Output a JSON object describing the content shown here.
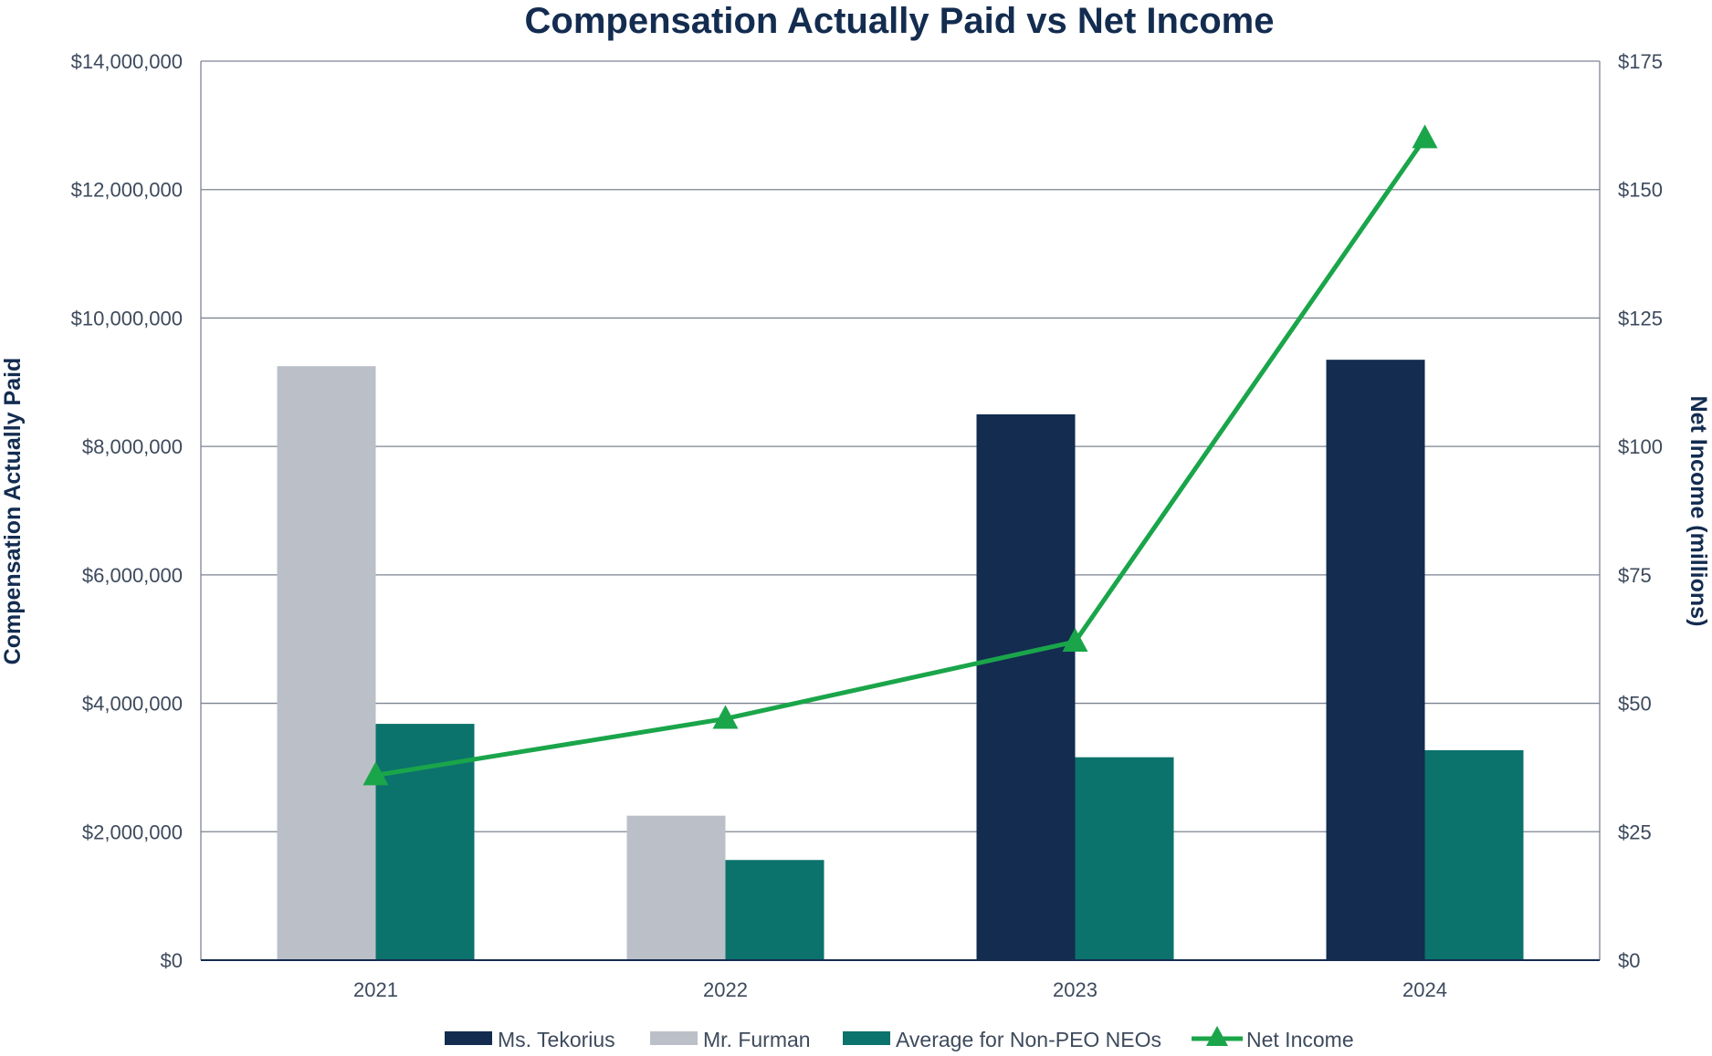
{
  "chart_data": {
    "type": "bar",
    "title": "Compensation Actually Paid vs Net Income",
    "categories": [
      "2021",
      "2022",
      "2023",
      "2024"
    ],
    "y_left": {
      "label": "Compensation Actually Paid",
      "range": [
        0,
        14000000
      ],
      "ticks": [
        "$0",
        "$2,000,000",
        "$4,000,000",
        "$6,000,000",
        "$8,000,000",
        "$10,000,000",
        "$12,000,000",
        "$14,000,000"
      ]
    },
    "y_right": {
      "label": "Net Income (millions)",
      "range": [
        0,
        175
      ],
      "ticks": [
        "$0",
        "$25",
        "$50",
        "$75",
        "$100",
        "$125",
        "$150",
        "$175"
      ]
    },
    "grid": true,
    "legend_position": "bottom",
    "series": [
      {
        "name": "Ms. Tekorius",
        "type": "bar",
        "axis": "left",
        "color": "#132c50",
        "values": [
          null,
          null,
          8500000,
          9350000
        ]
      },
      {
        "name": "Mr. Furman",
        "type": "bar",
        "axis": "left",
        "color": "#bbc0c8",
        "values": [
          9250000,
          2250000,
          null,
          null
        ]
      },
      {
        "name": "Average for Non-PEO NEOs",
        "type": "bar",
        "axis": "left",
        "color": "#0c726c",
        "values": [
          3680000,
          1560000,
          3160000,
          3270000
        ]
      },
      {
        "name": "Net Income",
        "type": "line",
        "axis": "right",
        "color": "#1aa54a",
        "marker": "triangle",
        "values": [
          36,
          47,
          62,
          160
        ]
      }
    ]
  }
}
